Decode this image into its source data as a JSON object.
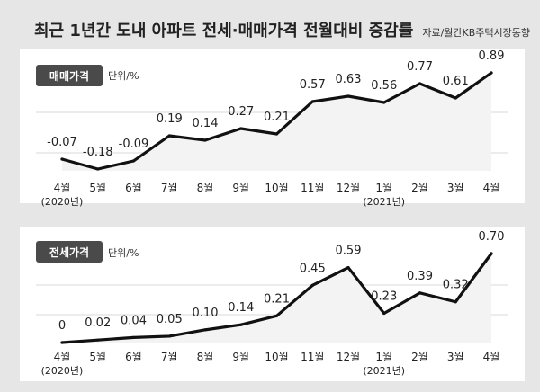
{
  "title": "최근 1년간 도내 아파트 전세·매매가격 전월대비 증감률",
  "source": "자료/월간KB주택시장동향",
  "colors": {
    "background": "#e6e6e6",
    "panel": "#ffffff",
    "line": "#111111",
    "area": "#f3f3f3",
    "badge": "#4a4a4a",
    "grid": "#d8d8d8"
  },
  "chart_data": [
    {
      "type": "line",
      "label": "매매가격",
      "unit": "단위/%",
      "categories": [
        "4월",
        "5월",
        "6월",
        "7월",
        "8월",
        "9월",
        "10월",
        "11월",
        "12월",
        "1월",
        "2월",
        "3월",
        "4월"
      ],
      "year_notes": {
        "0": "(2020년)",
        "9": "(2021년)"
      },
      "values": [
        -0.07,
        -0.18,
        -0.09,
        0.19,
        0.14,
        0.27,
        0.21,
        0.57,
        0.63,
        0.56,
        0.77,
        0.61,
        0.89
      ],
      "value_labels": [
        "-0.07",
        "-0.18",
        "-0.09",
        "0.19",
        "0.14",
        "0.27",
        "0.21",
        "0.57",
        "0.63",
        "0.56",
        "0.77",
        "0.61",
        "0.89"
      ],
      "ylim": [
        -0.2,
        0.9
      ]
    },
    {
      "type": "line",
      "label": "전세가격",
      "unit": "단위/%",
      "categories": [
        "4월",
        "5월",
        "6월",
        "7월",
        "8월",
        "9월",
        "10월",
        "11월",
        "12월",
        "1월",
        "2월",
        "3월",
        "4월"
      ],
      "year_notes": {
        "0": "(2020년)",
        "9": "(2021년)"
      },
      "values": [
        0,
        0.02,
        0.04,
        0.05,
        0.1,
        0.14,
        0.21,
        0.45,
        0.59,
        0.23,
        0.39,
        0.32,
        0.7
      ],
      "value_labels": [
        "0",
        "0.02",
        "0.04",
        "0.05",
        "0.10",
        "0.14",
        "0.21",
        "0.45",
        "0.59",
        "0.23",
        "0.39",
        "0.32",
        "0.70"
      ],
      "ylim": [
        0,
        0.7
      ]
    }
  ]
}
